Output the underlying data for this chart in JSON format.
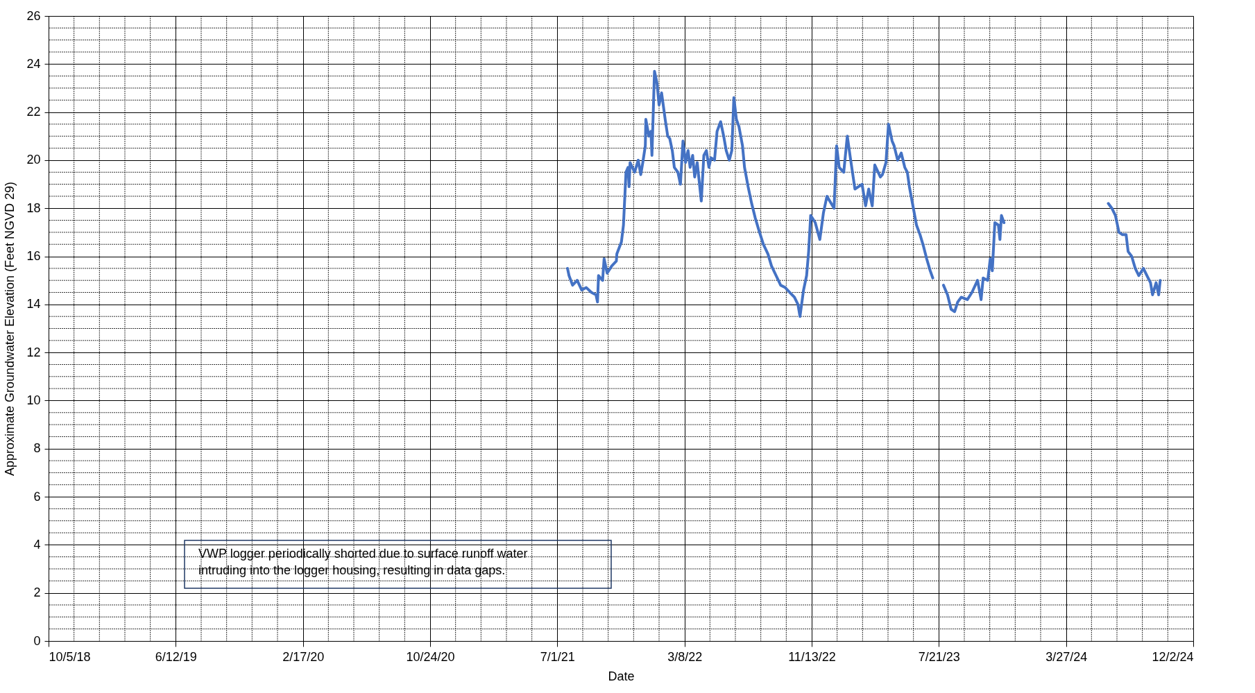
{
  "chart_data": {
    "type": "line",
    "xlabel": "Date",
    "ylabel": "Approximate Groundwater Elevation (Feet NGVD 29)",
    "x": [
      "2021-07-21",
      "2021-07-24",
      "2021-07-31",
      "2021-08-09",
      "2021-08-18",
      "2021-08-27",
      "2021-09-06",
      "2021-09-15",
      "2021-09-18",
      "2021-09-20",
      "2021-09-28",
      "2021-10-01",
      "2021-10-07",
      "2021-10-16",
      "2021-10-25",
      "2021-10-26",
      "2021-11-04",
      "2021-11-08",
      "2021-11-13",
      "2021-11-17",
      "2021-11-19",
      "2021-11-21",
      "2021-11-30",
      "2021-12-07",
      "2021-12-12",
      "2021-12-16",
      "2021-12-21",
      "2021-12-22",
      "2021-12-28",
      "2022-01-01",
      "2022-01-03",
      "2022-01-08",
      "2022-01-13",
      "2022-01-17",
      "2022-01-22",
      "2022-01-29",
      "2022-02-03",
      "2022-02-07",
      "2022-02-12",
      "2022-02-16",
      "2022-02-23",
      "2022-02-28",
      "2022-03-05",
      "2022-03-10",
      "2022-03-15",
      "2022-03-19",
      "2022-03-24",
      "2022-03-28",
      "2022-04-02",
      "2022-04-07",
      "2022-04-10",
      "2022-04-15",
      "2022-04-20",
      "2022-04-25",
      "2022-04-29",
      "2022-05-06",
      "2022-05-11",
      "2022-05-18",
      "2022-05-24",
      "2022-05-29",
      "2022-06-04",
      "2022-06-09",
      "2022-06-13",
      "2022-06-18",
      "2022-06-23",
      "2022-06-30",
      "2022-07-04",
      "2022-07-11",
      "2022-07-18",
      "2022-07-25",
      "2022-08-01",
      "2022-08-10",
      "2022-08-19",
      "2022-08-26",
      "2022-09-04",
      "2022-09-13",
      "2022-09-22",
      "2022-10-01",
      "2022-10-10",
      "2022-10-17",
      "2022-10-21",
      "2022-10-28",
      "2022-11-03",
      "2022-11-07",
      "2022-11-11",
      "2022-11-20",
      "2022-11-29",
      "2022-12-06",
      "2022-12-13",
      "2022-12-27",
      "2023-01-01",
      "2023-01-06",
      "2023-01-15",
      "2023-01-22",
      "2023-01-28",
      "2023-02-06",
      "2023-02-20",
      "2023-02-27",
      "2023-03-05",
      "2023-03-12",
      "2023-03-17",
      "2023-03-28",
      "2023-04-01",
      "2023-04-08",
      "2023-04-13",
      "2023-04-20",
      "2023-04-24",
      "2023-05-01",
      "2023-05-08",
      "2023-05-15",
      "2023-05-20",
      "2023-05-24",
      "2023-05-31",
      "2023-06-07",
      "2023-06-14",
      "2023-06-21",
      "2023-06-27",
      "2023-07-04",
      "2023-07-09",
      "2023-07-20",
      "2023-07-30",
      "2023-08-07",
      "2023-08-14",
      "2023-08-21",
      "2023-08-27",
      "2023-09-03",
      "2023-09-15",
      "2023-09-24",
      "2023-10-05",
      "2023-10-12",
      "2023-10-16",
      "2023-10-25",
      "2023-10-30",
      "2023-11-03",
      "2023-11-08",
      "2023-11-15",
      "2023-11-18",
      "2023-11-21",
      "2023-11-26",
      "2024-03-01",
      "2024-06-18",
      "2024-06-25",
      "2024-07-02",
      "2024-07-09",
      "2024-07-16",
      "2024-07-23",
      "2024-07-27",
      "2024-08-03",
      "2024-08-10",
      "2024-08-17",
      "2024-08-26",
      "2024-09-02",
      "2024-09-09",
      "2024-09-13",
      "2024-09-20",
      "2024-09-25",
      "2024-09-28"
    ],
    "series": [
      {
        "color": "#4472c4",
        "values": [
          15.5,
          15.2,
          14.8,
          15.0,
          14.6,
          14.7,
          14.5,
          14.4,
          14.1,
          15.2,
          15.0,
          15.9,
          15.3,
          15.6,
          15.8,
          16.1,
          16.6,
          17.3,
          19.5,
          19.7,
          18.9,
          19.9,
          19.5,
          20.0,
          19.4,
          19.9,
          20.6,
          21.7,
          21.0,
          21.2,
          20.2,
          23.7,
          23.2,
          22.3,
          22.8,
          21.7,
          21.0,
          20.9,
          20.4,
          19.7,
          19.5,
          19.0,
          20.8,
          19.9,
          20.4,
          19.7,
          20.2,
          19.3,
          19.9,
          18.9,
          18.3,
          20.2,
          20.4,
          19.7,
          20.1,
          20.0,
          21.2,
          21.6,
          21.0,
          20.4,
          20.0,
          20.4,
          22.6,
          21.7,
          21.4,
          20.6,
          19.7,
          18.9,
          18.2,
          17.6,
          17.1,
          16.5,
          16.1,
          15.6,
          15.2,
          14.8,
          14.7,
          14.5,
          14.3,
          14.0,
          13.5,
          14.6,
          15.2,
          16.2,
          17.7,
          17.4,
          16.7,
          17.8,
          18.5,
          18.0,
          20.6,
          19.7,
          19.5,
          21.0,
          20.1,
          18.8,
          19.0,
          18.1,
          18.8,
          18.1,
          19.8,
          19.3,
          19.4,
          19.9,
          21.5,
          20.8,
          20.6,
          20.0,
          20.3,
          19.7,
          19.5,
          18.9,
          18.1,
          17.3,
          16.9,
          16.4,
          15.9,
          15.4,
          15.1,
          null,
          14.8,
          14.4,
          13.8,
          13.7,
          14.1,
          14.3,
          14.2,
          14.5,
          15.0,
          14.2,
          15.1,
          15.0,
          15.9,
          15.4,
          17.4,
          17.3,
          16.7,
          17.7,
          17.4,
          null,
          18.2,
          18.0,
          17.7,
          17.0,
          16.9,
          16.9,
          16.2,
          16.0,
          15.5,
          15.2,
          15.5,
          15.2,
          14.9,
          14.4,
          14.9,
          14.4,
          15.0
        ]
      }
    ],
    "xlim": [
      "2018-10-05",
      "2024-12-02"
    ],
    "xticks": [
      {
        "value": "2018-10-05",
        "label": "10/5/18"
      },
      {
        "value": "2019-06-12",
        "label": "6/12/19"
      },
      {
        "value": "2020-02-17",
        "label": "2/17/20"
      },
      {
        "value": "2020-10-24",
        "label": "10/24/20"
      },
      {
        "value": "2021-07-01",
        "label": "7/1/21"
      },
      {
        "value": "2022-03-08",
        "label": "3/8/22"
      },
      {
        "value": "2022-11-13",
        "label": "11/13/22"
      },
      {
        "value": "2023-07-21",
        "label": "7/21/23"
      },
      {
        "value": "2024-03-27",
        "label": "3/27/24"
      },
      {
        "value": "2024-12-02",
        "label": "12/2/24"
      }
    ],
    "ylim": [
      0,
      26
    ],
    "yticks": [
      0,
      2,
      4,
      6,
      8,
      10,
      12,
      14,
      16,
      18,
      20,
      22,
      24,
      26
    ],
    "grid": true,
    "line_style": "solid",
    "marker": "none",
    "annotations": [
      "VWP logger periodically shorted due to surface runoff water\nintruding into the logger housing, resulting in data gaps."
    ]
  }
}
